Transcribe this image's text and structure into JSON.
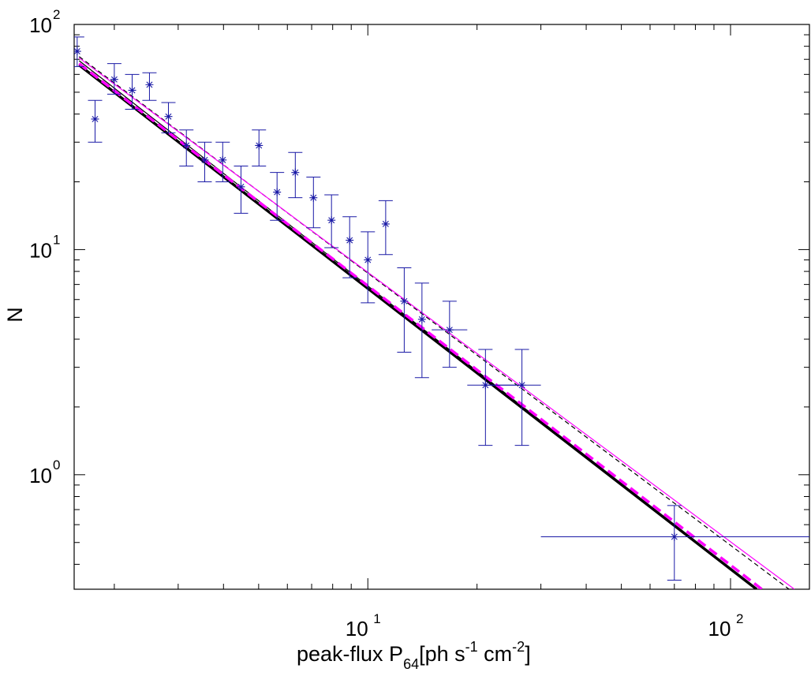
{
  "chart_data": {
    "type": "scatter",
    "title": "",
    "xlabel": {
      "prefix": "peak-flux P",
      "subscript": "64",
      "unit_open": "[ph s",
      "exp1": "-1",
      "unit_mid": " cm",
      "exp2": "-2",
      "unit_close": "]"
    },
    "ylabel": "N",
    "xscale": "log",
    "yscale": "log",
    "xlim": [
      1.55,
      165
    ],
    "ylim": [
      0.31,
      100
    ],
    "xticks": [
      {
        "value": 10,
        "base": "10",
        "exp": "1"
      },
      {
        "value": 100,
        "base": "10",
        "exp": "2"
      }
    ],
    "yticks": [
      {
        "value": 1,
        "base": "10",
        "exp": "0"
      },
      {
        "value": 10,
        "base": "10",
        "exp": "1"
      },
      {
        "value": 100,
        "base": "10",
        "exp": "2"
      }
    ],
    "grid": false,
    "colors": {
      "data": "#1a1aa6",
      "fit_black": "#000000",
      "fit_magenta": "#ff00ff"
    },
    "data_points": [
      {
        "x": 1.58,
        "y": 76,
        "ylo": 65,
        "yhi": 88
      },
      {
        "x": 1.77,
        "y": 38,
        "ylo": 30,
        "yhi": 46
      },
      {
        "x": 2.0,
        "y": 57,
        "ylo": 49,
        "yhi": 67
      },
      {
        "x": 2.24,
        "y": 51,
        "ylo": 42,
        "yhi": 60
      },
      {
        "x": 2.5,
        "y": 54,
        "ylo": 46,
        "yhi": 61
      },
      {
        "x": 2.82,
        "y": 39,
        "ylo": 33,
        "yhi": 45
      },
      {
        "x": 3.16,
        "y": 29,
        "ylo": 23.5,
        "yhi": 34
      },
      {
        "x": 3.55,
        "y": 25,
        "ylo": 20,
        "yhi": 30
      },
      {
        "x": 3.98,
        "y": 25,
        "ylo": 20,
        "yhi": 30
      },
      {
        "x": 4.47,
        "y": 19,
        "ylo": 14.5,
        "yhi": 23.5
      },
      {
        "x": 5.01,
        "y": 29,
        "ylo": 23.5,
        "yhi": 34
      },
      {
        "x": 5.62,
        "y": 18,
        "ylo": 13.5,
        "yhi": 22
      },
      {
        "x": 6.31,
        "y": 22,
        "ylo": 17,
        "yhi": 27
      },
      {
        "x": 7.08,
        "y": 17,
        "ylo": 12.5,
        "yhi": 21
      },
      {
        "x": 7.94,
        "y": 13.5,
        "ylo": 10.2,
        "yhi": 17.5
      },
      {
        "x": 8.91,
        "y": 11,
        "ylo": 7.5,
        "yhi": 14
      },
      {
        "x": 10.0,
        "y": 9,
        "ylo": 5.8,
        "yhi": 12
      },
      {
        "x": 11.2,
        "y": 13,
        "ylo": 9.5,
        "yhi": 16.5
      },
      {
        "x": 12.6,
        "y": 5.9,
        "ylo": 3.5,
        "yhi": 8.3
      },
      {
        "x": 14.1,
        "y": 4.9,
        "ylo": 2.7,
        "yhi": 7.1
      },
      {
        "x": 16.8,
        "y": 4.4,
        "ylo": 3.0,
        "yhi": 5.9,
        "xlo": 15.0,
        "xhi": 18.8
      },
      {
        "x": 21.1,
        "y": 2.5,
        "ylo": 1.35,
        "yhi": 3.6,
        "xlo": 18.8,
        "xhi": 26.6
      },
      {
        "x": 26.6,
        "y": 2.5,
        "ylo": 1.35,
        "yhi": 3.6,
        "xlo": 21.1,
        "xhi": 30.0
      },
      {
        "x": 70.0,
        "y": 0.53,
        "ylo": 0.34,
        "yhi": 0.73,
        "xlo": 30.0,
        "xhi": 165
      }
    ],
    "fit_lines": [
      {
        "color": "#000000",
        "style": "solid",
        "width": 3.5,
        "x": [
          1.6,
          118
        ],
        "y": [
          66,
          0.31
        ]
      },
      {
        "color": "#000000",
        "style": "solid",
        "width": 1.2,
        "x": [
          1.6,
          118
        ],
        "y": [
          69,
          0.31
        ]
      },
      {
        "color": "#000000",
        "style": "dashed",
        "width": 1.2,
        "x": [
          1.6,
          145
        ],
        "y": [
          72,
          0.31
        ]
      },
      {
        "color": "#ff00ff",
        "style": "solid",
        "width": 1.2,
        "x": [
          1.6,
          150
        ],
        "y": [
          71,
          0.31
        ]
      },
      {
        "color": "#ff00ff",
        "style": "dashed",
        "width": 3.5,
        "x": [
          1.6,
          122
        ],
        "y": [
          67,
          0.31
        ]
      }
    ]
  }
}
